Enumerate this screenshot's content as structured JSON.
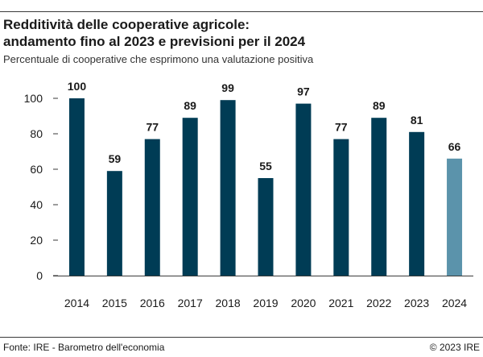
{
  "chart_data": {
    "type": "bar",
    "title_line1": "Redditività delle cooperative agricole:",
    "title_line2": "andamento fino al 2023 e previsioni per il 2024",
    "subtitle": "Percentuale di cooperative che esprimono una valutazione positiva",
    "categories": [
      "2014",
      "2015",
      "2016",
      "2017",
      "2018",
      "2019",
      "2020",
      "2021",
      "2022",
      "2023",
      "2024"
    ],
    "values": [
      100,
      59,
      77,
      89,
      99,
      55,
      97,
      77,
      89,
      81,
      66
    ],
    "data_labels": [
      "100",
      "59",
      "77",
      "89",
      "99",
      "55",
      "97",
      "77",
      "89",
      "81",
      "66"
    ],
    "forecast_index": 10,
    "ylim": [
      0,
      100
    ],
    "yticks": [
      0,
      20,
      40,
      60,
      80,
      100
    ],
    "ytick_labels": [
      "0",
      "20",
      "40",
      "60",
      "80",
      "100"
    ],
    "xlabel": "",
    "ylabel": "",
    "grid": false,
    "legend": "none"
  },
  "colors": {
    "bar": "#003c55",
    "forecast_bar": "#5b93ab",
    "axis": "#3a3a3a",
    "text": "#1a1a1a"
  },
  "footer": {
    "source": "Fonte: IRE - Barometro dell'economia",
    "copyright": "© 2023 IRE"
  }
}
